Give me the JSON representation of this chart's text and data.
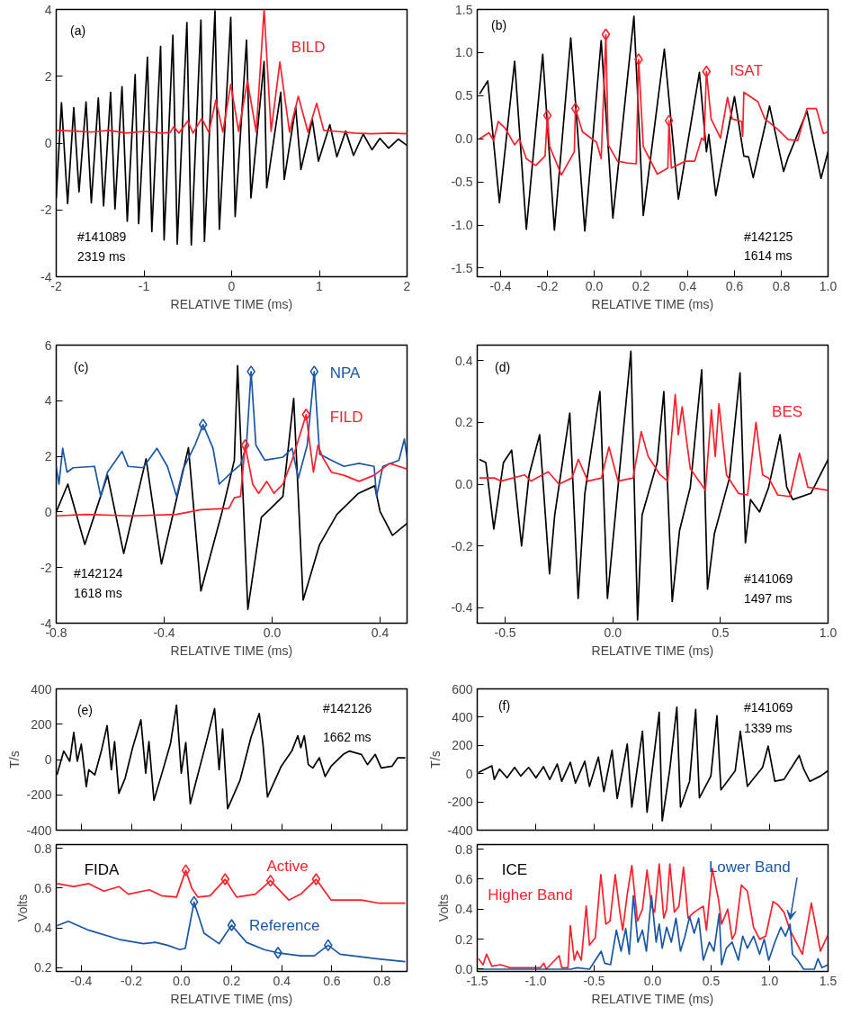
{
  "chart_data": [
    {
      "type": "line",
      "xlabel": "RELATIVE TIME (ms)",
      "xlim": [
        -2,
        2
      ],
      "ylim": [
        -4,
        4
      ],
      "xticks": [
        -2,
        -1,
        0,
        1,
        2
      ],
      "yticks": [
        -4,
        -2,
        0,
        2,
        4
      ],
      "annotations": [
        "(a)",
        "#141089",
        "2319 ms"
      ],
      "series": [
        {
          "color": "#000000",
          "x": [
            -2,
            -1.94,
            -1.87,
            -1.8,
            -1.74,
            -1.66,
            -1.6,
            -1.52,
            -1.46,
            -1.38,
            -1.33,
            -1.25,
            -1.19,
            -1.1,
            -1.06,
            -0.96,
            -0.91,
            -0.81,
            -0.77,
            -0.67,
            -0.62,
            -0.51,
            -0.46,
            -0.35,
            -0.31,
            -0.19,
            -0.14,
            -0.01,
            0.04,
            0.17,
            0.22,
            0.37,
            0.4,
            0.56,
            0.6,
            0.73,
            0.79,
            0.92,
            0.99,
            1.12,
            1.2,
            1.3,
            1.39,
            1.5,
            1.6,
            1.69,
            1.79,
            1.9,
            2.0
          ],
          "values": [
            -1.64,
            1.21,
            -1.81,
            1.06,
            -1.46,
            1.23,
            -1.79,
            1.35,
            -1.88,
            1.52,
            -1.97,
            1.69,
            -2.34,
            2.05,
            -2.41,
            2.57,
            -2.65,
            2.89,
            -2.9,
            3.23,
            -3.02,
            3.61,
            -3.05,
            3.68,
            -2.94,
            3.96,
            -2.58,
            3.76,
            -2.2,
            3.08,
            -1.64,
            2.44,
            -1.34,
            1.52,
            -1.09,
            1.08,
            -0.79,
            0.7,
            -0.54,
            0.55,
            -0.41,
            0.36,
            -0.37,
            0.27,
            -0.2,
            0.14,
            -0.15,
            0.12,
            -0.07
          ]
        },
        {
          "name": "BILD",
          "color": "#ff1f2a",
          "x": [
            -2,
            -1.8,
            -1.6,
            -1.4,
            -1.2,
            -1.0,
            -0.8,
            -0.7,
            -0.66,
            -0.6,
            -0.5,
            -0.44,
            -0.34,
            -0.26,
            -0.18,
            -0.1,
            -0.01,
            0.08,
            0.18,
            0.28,
            0.37,
            0.45,
            0.55,
            0.66,
            0.76,
            0.87,
            0.97,
            1.05,
            1.2,
            1.4,
            1.6,
            1.8,
            2.0
          ],
          "values": [
            0.38,
            0.36,
            0.33,
            0.38,
            0.3,
            0.35,
            0.3,
            0.32,
            0.49,
            0.3,
            0.66,
            0.3,
            0.74,
            0.32,
            1.29,
            0.33,
            1.76,
            0.35,
            1.86,
            0.33,
            4.0,
            0.35,
            2.43,
            0.33,
            1.4,
            0.33,
            1.19,
            0.38,
            0.35,
            0.3,
            0.28,
            0.3,
            0.28
          ]
        }
      ]
    },
    {
      "type": "line",
      "xlabel": "RELATIVE TIME (ms)",
      "xlim": [
        -0.5,
        1.0
      ],
      "ylim": [
        -1.6,
        1.5
      ],
      "xticks": [
        -0.4,
        -0.2,
        {
          "value": 0,
          "label": "0.0"
        },
        0.2,
        0.4,
        0.6,
        0.8,
        {
          "value": 1,
          "label": "1.0"
        }
      ],
      "yticks": [
        -1.5,
        {
          "value": -1,
          "label": "-1.0"
        },
        -0.5,
        {
          "value": 0,
          "label": "0.0"
        },
        0.5,
        {
          "value": 1,
          "label": "1.0"
        },
        1.5
      ],
      "annotations": [
        "(b)",
        "#142125",
        "1614 ms"
      ],
      "series": [
        {
          "color": "#000000",
          "x": [
            -0.49,
            -0.455,
            -0.405,
            -0.34,
            -0.29,
            -0.22,
            -0.17,
            -0.1,
            -0.04,
            0.03,
            0.08,
            0.17,
            0.21,
            0.3,
            0.36,
            0.45,
            0.48,
            0.49,
            0.52,
            0.6,
            0.64,
            0.66,
            0.68,
            0.75,
            0.81,
            0.83,
            0.91,
            0.97,
            1.0
          ],
          "values": [
            0.52,
            0.67,
            -0.74,
            0.9,
            -1.05,
            0.98,
            -1.06,
            1.17,
            -1.07,
            1.14,
            -0.92,
            1.42,
            -0.89,
            1.04,
            -0.7,
            0.77,
            -0.15,
            0.05,
            -0.66,
            0.49,
            -0.2,
            -0.21,
            -0.45,
            0.38,
            -0.38,
            -0.21,
            0.32,
            -0.46,
            -0.15
          ]
        },
        {
          "name": "ISAT",
          "color": "#ff1f2a",
          "x": [
            -0.49,
            -0.45,
            -0.43,
            -0.41,
            -0.38,
            -0.34,
            -0.32,
            -0.29,
            -0.25,
            -0.21,
            -0.2,
            -0.19,
            -0.14,
            -0.085,
            -0.08,
            -0.05,
            0.01,
            0.03,
            0.05,
            0.06,
            0.1,
            0.14,
            0.18,
            0.19,
            0.21,
            0.27,
            0.315,
            0.32,
            0.33,
            0.39,
            0.43,
            0.46,
            0.47,
            0.48,
            0.5,
            0.54,
            0.57,
            0.59,
            0.63,
            0.635,
            0.64,
            0.7,
            0.73,
            0.78,
            0.83,
            0.87,
            0.91,
            0.95,
            0.98,
            1.0
          ],
          "values": [
            0.0,
            0.07,
            -0.02,
            0.2,
            0.12,
            -0.07,
            0.0,
            -0.23,
            -0.31,
            -0.2,
            0.27,
            -0.09,
            -0.42,
            -0.15,
            0.35,
            0.08,
            -0.04,
            -0.23,
            1.21,
            -0.07,
            -0.26,
            -0.28,
            -0.29,
            0.92,
            -0.09,
            -0.41,
            -0.34,
            0.21,
            -0.34,
            -0.26,
            -0.26,
            0.01,
            -0.02,
            0.78,
            0.23,
            0.01,
            0.48,
            0.23,
            0.2,
            0.03,
            0.54,
            0.43,
            0.23,
            0.12,
            -0.01,
            -0.02,
            0.35,
            0.35,
            0.06,
            0.08
          ]
        },
        {
          "type": "scatter",
          "marker": "diamond",
          "color": "#ff1f2a",
          "x": [
            -0.2,
            -0.08,
            0.05,
            0.19,
            0.32,
            0.48
          ],
          "values": [
            0.27,
            0.35,
            1.21,
            0.92,
            0.21,
            0.78
          ]
        }
      ]
    },
    {
      "type": "line",
      "xlabel": "RELATIVE TIME (ms)",
      "xlim": [
        -0.8,
        0.5
      ],
      "ylim": [
        -4,
        6
      ],
      "xticks": [
        -0.8,
        -0.4,
        {
          "value": 0,
          "label": "0.0"
        },
        0.4
      ],
      "yticks": [
        -4,
        -2,
        0,
        2,
        4,
        6
      ],
      "annotations": [
        "(c)",
        "#142124",
        "1618 ms"
      ],
      "series": [
        {
          "color": "#000000",
          "x": [
            -0.8,
            -0.757,
            -0.694,
            -0.61,
            -0.55,
            -0.467,
            -0.41,
            -0.31,
            -0.264,
            -0.185,
            -0.14,
            -0.128,
            -0.09,
            -0.04,
            -0.005,
            0.04,
            0.08,
            0.115,
            0.176,
            0.24,
            0.32,
            0.38,
            0.4,
            0.446,
            0.5
          ],
          "values": [
            0.0,
            1.0,
            -1.17,
            1.32,
            -1.49,
            1.91,
            -1.87,
            2.31,
            -2.84,
            0.02,
            1.86,
            5.26,
            -3.5,
            -0.19,
            0.13,
            0.56,
            4.08,
            -3.17,
            -1.17,
            -0.09,
            0.67,
            0.94,
            0.02,
            -0.84,
            -0.41
          ]
        },
        {
          "name": "NPA",
          "color": "#1a56a8",
          "x": [
            -0.8,
            -0.79,
            -0.776,
            -0.76,
            -0.737,
            -0.658,
            -0.635,
            -0.61,
            -0.556,
            -0.534,
            -0.478,
            -0.427,
            -0.388,
            -0.354,
            -0.33,
            -0.286,
            -0.256,
            -0.219,
            -0.196,
            -0.15,
            -0.117,
            -0.095,
            -0.078,
            -0.06,
            -0.027,
            0.04,
            0.074,
            0.097,
            0.13,
            0.156,
            0.176,
            0.22,
            0.266,
            0.322,
            0.378,
            0.387,
            0.41,
            0.47,
            0.49,
            0.5
          ],
          "values": [
            1.64,
            1.0,
            2.29,
            1.43,
            1.59,
            1.64,
            0.56,
            1.43,
            2.18,
            1.64,
            1.59,
            2.29,
            1.64,
            0.56,
            1.54,
            2.4,
            3.14,
            2.29,
            1.0,
            1.43,
            1.7,
            2.4,
            5.05,
            2.4,
            1.86,
            1.97,
            2.29,
            1.21,
            2.4,
            5.05,
            2.08,
            1.86,
            1.64,
            1.75,
            1.64,
            0.56,
            1.64,
            1.86,
            2.62,
            1.97
          ]
        },
        {
          "type": "scatter",
          "marker": "diamond",
          "color": "#1a56a8",
          "x": [
            -0.256,
            -0.078,
            0.156
          ],
          "values": [
            3.14,
            5.05,
            5.05
          ]
        },
        {
          "name": "FILD",
          "color": "#ff1f2a",
          "x": [
            -0.8,
            -0.69,
            -0.52,
            -0.354,
            -0.264,
            -0.16,
            -0.14,
            -0.117,
            -0.1,
            -0.072,
            -0.05,
            -0.02,
            0.007,
            0.04,
            0.074,
            0.126,
            0.153,
            0.17,
            0.187,
            0.22,
            0.266,
            0.322,
            0.378,
            0.435,
            0.5
          ],
          "values": [
            -0.14,
            -0.09,
            -0.14,
            -0.09,
            0.08,
            0.13,
            0.51,
            0.56,
            2.4,
            1.0,
            0.67,
            1.1,
            0.67,
            1.0,
            1.86,
            3.5,
            1.43,
            2.4,
            1.97,
            1.43,
            1.32,
            1.1,
            1.32,
            1.75,
            1.54
          ]
        },
        {
          "type": "scatter",
          "marker": "diamond",
          "color": "#ff1f2a",
          "x": [
            -0.1,
            0.126
          ],
          "values": [
            2.4,
            3.5
          ]
        }
      ]
    },
    {
      "type": "line",
      "xlabel": "RELATIVE TIME (ms)",
      "xlim": [
        -0.63,
        1.0
      ],
      "ylim": [
        -0.45,
        0.45
      ],
      "xticks": [
        -0.5,
        {
          "value": 0,
          "label": "0.0"
        },
        0.5,
        {
          "value": 1,
          "label": "1.0"
        }
      ],
      "yticks": [
        -0.4,
        -0.2,
        {
          "value": 0,
          "label": "0.0"
        },
        0.2,
        0.4
      ],
      "annotations": [
        "(d)",
        "#141069",
        "1497 ms"
      ],
      "series": [
        {
          "color": "#000000",
          "x": [
            -0.62,
            -0.59,
            -0.553,
            -0.508,
            -0.47,
            -0.424,
            -0.389,
            -0.34,
            -0.294,
            -0.27,
            -0.2,
            -0.161,
            -0.13,
            -0.06,
            -0.025,
            0.024,
            0.084,
            0.115,
            0.136,
            0.206,
            0.237,
            0.276,
            0.31,
            0.36,
            0.413,
            0.44,
            0.472,
            0.542,
            0.591,
            0.616,
            0.64,
            0.682,
            0.724,
            0.777,
            0.808,
            0.836,
            0.92,
            1.0
          ],
          "values": [
            0.08,
            0.07,
            -0.145,
            0.07,
            0.11,
            -0.2,
            0.03,
            0.16,
            -0.29,
            -0.1,
            0.23,
            -0.37,
            -0.03,
            0.3,
            -0.37,
            -0.01,
            0.43,
            -0.44,
            -0.1,
            0.07,
            0.3,
            -0.38,
            -0.15,
            -0.01,
            0.37,
            -0.34,
            -0.16,
            0.02,
            0.36,
            -0.19,
            -0.05,
            -0.09,
            -0.01,
            0.16,
            -0.01,
            -0.05,
            -0.03,
            0.08
          ]
        },
        {
          "name": "BES",
          "color": "#ff1f2a",
          "x": [
            -0.62,
            -0.55,
            -0.52,
            -0.41,
            -0.38,
            -0.3,
            -0.25,
            -0.19,
            -0.16,
            -0.116,
            -0.053,
            -0.018,
            0.024,
            0.094,
            0.132,
            0.164,
            0.22,
            0.255,
            0.29,
            0.304,
            0.322,
            0.36,
            0.43,
            0.458,
            0.476,
            0.493,
            0.528,
            0.584,
            0.626,
            0.665,
            0.696,
            0.724,
            0.766,
            0.822,
            0.867,
            0.906,
            1.0
          ],
          "values": [
            0.02,
            0.02,
            0.01,
            0.03,
            0.01,
            0.04,
            0.0,
            0.02,
            0.08,
            0.01,
            0.02,
            0.12,
            0.01,
            0.02,
            0.17,
            0.09,
            0.03,
            0.01,
            0.29,
            0.16,
            0.25,
            0.05,
            -0.02,
            0.24,
            0.09,
            0.26,
            0.03,
            -0.03,
            -0.035,
            0.2,
            0.03,
            0.02,
            -0.035,
            -0.04,
            0.1,
            -0.01,
            -0.02
          ]
        }
      ]
    },
    {
      "type": "line",
      "tick_labels": "y",
      "ylabel": "T/s",
      "xlim": [
        -0.5,
        0.9
      ],
      "ylim": [
        -400,
        400
      ],
      "xticks": [
        -0.4,
        -0.2,
        0,
        0.2,
        0.4,
        0.6,
        0.8
      ],
      "yticks": [
        -400,
        -200,
        0,
        200,
        400
      ],
      "annotations": [
        "(e)",
        "#142126",
        "1662 ms"
      ],
      "series": [
        {
          "color": "#000000",
          "x": [
            -0.497,
            -0.47,
            -0.446,
            -0.43,
            -0.416,
            -0.4,
            -0.38,
            -0.37,
            -0.346,
            -0.32,
            -0.297,
            -0.28,
            -0.267,
            -0.25,
            -0.225,
            -0.195,
            -0.162,
            -0.143,
            -0.13,
            -0.11,
            -0.074,
            -0.044,
            -0.02,
            -0.001,
            0.017,
            0.035,
            0.095,
            0.132,
            0.15,
            0.164,
            0.184,
            0.234,
            0.277,
            0.31,
            0.325,
            0.343,
            0.398,
            0.44,
            0.464,
            0.476,
            0.49,
            0.506,
            0.524,
            0.55,
            0.573,
            0.597,
            0.645,
            0.67,
            0.718,
            0.742,
            0.773,
            0.797,
            0.84,
            0.863,
            0.893
          ],
          "values": [
            -87,
            48,
            -10,
            154,
            -10,
            87,
            -154,
            -58,
            -87,
            48,
            192,
            -58,
            102,
            -192,
            -106,
            67,
            225,
            -77,
            102,
            -231,
            -58,
            90,
            308,
            -77,
            96,
            -250,
            77,
            288,
            -58,
            173,
            -279,
            -115,
            125,
            260,
            87,
            -212,
            -38,
            48,
            135,
            67,
            135,
            -29,
            -48,
            10,
            -96,
            -38,
            29,
            48,
            29,
            -29,
            29,
            -48,
            -38,
            10,
            10
          ]
        }
      ]
    },
    {
      "type": "line",
      "ylabel": "Volts",
      "xlabel": "RELATIVE TIME (ms)",
      "xlim": [
        -0.5,
        0.9
      ],
      "ylim": [
        0.18,
        0.82
      ],
      "xticks": [
        -0.4,
        -0.2,
        {
          "value": 0,
          "label": "0.0"
        },
        0.2,
        0.4,
        0.6,
        0.8
      ],
      "yticks": [
        0.2,
        0.4,
        0.6,
        0.8
      ],
      "annotations": [
        "FIDA"
      ],
      "series": [
        {
          "name": "Active",
          "color": "#ff1f2a",
          "x": [
            -0.497,
            -0.43,
            -0.37,
            -0.31,
            -0.25,
            -0.212,
            -0.128,
            -0.08,
            -0.02,
            0.017,
            0.041,
            0.065,
            0.114,
            0.174,
            0.22,
            0.295,
            0.355,
            0.428,
            0.476,
            0.537,
            0.597,
            0.718,
            0.79,
            0.893
          ],
          "values": [
            0.623,
            0.608,
            0.623,
            0.585,
            0.608,
            0.57,
            0.592,
            0.562,
            0.555,
            0.69,
            0.6,
            0.555,
            0.562,
            0.645,
            0.555,
            0.57,
            0.638,
            0.54,
            0.57,
            0.645,
            0.54,
            0.54,
            0.524,
            0.524
          ]
        },
        {
          "type": "scatter",
          "marker": "diamond",
          "color": "#ff1f2a",
          "x": [
            0.017,
            0.174,
            0.355,
            0.537
          ],
          "values": [
            0.69,
            0.645,
            0.638,
            0.645
          ]
        },
        {
          "name": "Reference",
          "color": "#1a56a8",
          "x": [
            -0.497,
            -0.452,
            -0.37,
            -0.25,
            -0.152,
            -0.104,
            -0.056,
            -0.007,
            0.015,
            0.05,
            0.09,
            0.15,
            0.2,
            0.259,
            0.33,
            0.385,
            0.476,
            0.53,
            0.585,
            0.633,
            0.778,
            0.893
          ],
          "values": [
            0.41,
            0.433,
            0.388,
            0.342,
            0.32,
            0.327,
            0.312,
            0.29,
            0.297,
            0.53,
            0.373,
            0.32,
            0.414,
            0.327,
            0.29,
            0.274,
            0.259,
            0.259,
            0.312,
            0.267,
            0.244,
            0.229
          ]
        },
        {
          "type": "scatter",
          "marker": "diamond",
          "color": "#1a56a8",
          "x": [
            0.05,
            0.2,
            0.385,
            0.585
          ],
          "values": [
            0.53,
            0.414,
            0.274,
            0.312
          ]
        }
      ]
    },
    {
      "type": "line",
      "tick_labels": "y",
      "ylabel": "T/s",
      "xlim": [
        -1.5,
        1.5
      ],
      "ylim": [
        -400,
        600
      ],
      "xticks": [
        -1.5,
        -1,
        -0.5,
        0,
        0.5,
        1,
        1.5
      ],
      "yticks": [
        -400,
        -200,
        0,
        200,
        400,
        600
      ],
      "annotations": [
        "(f)",
        "#141069",
        "1339 ms"
      ],
      "series": [
        {
          "color": "#000000",
          "x": [
            -1.49,
            -1.375,
            -1.354,
            -1.31,
            -1.245,
            -1.18,
            -1.128,
            -1.06,
            -0.998,
            -0.933,
            -0.88,
            -0.816,
            -0.777,
            -0.704,
            -0.66,
            -0.58,
            -0.54,
            -0.464,
            -0.417,
            -0.347,
            -0.303,
            -0.217,
            -0.178,
            -0.087,
            -0.048,
            0.056,
            0.082,
            0.147,
            0.207,
            0.238,
            0.316,
            0.368,
            0.4,
            0.498,
            0.55,
            0.584,
            0.706,
            0.75,
            0.81,
            0.94,
            0.988,
            1.045,
            1.123,
            1.253,
            1.292,
            1.344,
            1.435,
            1.5
          ],
          "values": [
            7,
            56,
            -41,
            32,
            -29,
            44,
            -17,
            44,
            -29,
            49,
            -41,
            68,
            -54,
            80,
            -66,
            88,
            -90,
            117,
            -127,
            166,
            -176,
            210,
            -237,
            300,
            -273,
            434,
            -334,
            32,
            471,
            -237,
            -54,
            454,
            -171,
            -17,
            410,
            -115,
            20,
            300,
            -90,
            44,
            195,
            -54,
            -41,
            129,
            32,
            -54,
            -17,
            20
          ]
        }
      ]
    },
    {
      "type": "line",
      "ylabel": "Volts",
      "xlabel": "RELATIVE TIME (ms)",
      "xlim": [
        -1.5,
        1.5
      ],
      "ylim": [
        -0.015,
        0.83
      ],
      "xticks": [
        -1.5,
        {
          "value": -1,
          "label": "-1.0"
        },
        -0.5,
        {
          "value": 0,
          "label": "0.0"
        },
        0.5,
        {
          "value": 1,
          "label": "1.0"
        },
        1.5
      ],
      "yticks": [
        {
          "value": 0,
          "label": "0.0"
        },
        0.2,
        0.4,
        0.6,
        0.8
      ],
      "annotations": [
        "ICE",
        {
          "text": "Lower Band",
          "x": 1.175,
          "y": 0.33
        }
      ],
      "series": [
        {
          "name": "Higher Band",
          "color": "#ff1f2a",
          "x": [
            -1.49,
            -1.45,
            -1.42,
            -1.375,
            -1.3,
            -1.22,
            -0.96,
            -0.93,
            -0.91,
            -0.8,
            -0.777,
            -0.724,
            -0.704,
            -0.67,
            -0.646,
            -0.61,
            -0.568,
            -0.54,
            -0.49,
            -0.443,
            -0.4,
            -0.365,
            -0.32,
            -0.28,
            -0.256,
            -0.217,
            -0.178,
            -0.13,
            -0.087,
            -0.048,
            -0.01,
            0.017,
            0.056,
            0.095,
            0.12,
            0.147,
            0.186,
            0.225,
            0.264,
            0.303,
            0.355,
            0.433,
            0.46,
            0.51,
            0.564,
            0.59,
            0.642,
            0.68,
            0.707,
            0.759,
            0.81,
            0.863,
            0.915,
            0.967,
            1.03,
            1.07,
            1.123,
            1.175,
            1.227,
            1.28,
            1.357,
            1.435,
            1.5
          ],
          "values": [
            0.07,
            0.03,
            0.1,
            0.02,
            0.03,
            0.01,
            0.01,
            0.04,
            0.0,
            0.09,
            0.01,
            0.01,
            0.29,
            0.06,
            0.12,
            0.06,
            0.42,
            0.16,
            0.21,
            0.63,
            0.3,
            0.32,
            0.63,
            0.38,
            0.26,
            0.5,
            0.69,
            0.32,
            0.4,
            0.66,
            0.42,
            0.38,
            0.7,
            0.34,
            0.4,
            0.7,
            0.38,
            0.42,
            0.68,
            0.34,
            0.38,
            0.42,
            0.26,
            0.67,
            0.46,
            0.3,
            0.4,
            0.2,
            0.24,
            0.56,
            0.52,
            0.28,
            0.2,
            0.22,
            0.45,
            0.43,
            0.38,
            0.26,
            0.18,
            0.1,
            0.44,
            0.12,
            0.23
          ]
        },
        {
          "color": "#1a56a8",
          "x": [
            -1.49,
            -1.22,
            -0.96,
            -0.7,
            -0.646,
            -0.54,
            -0.44,
            -0.41,
            -0.36,
            -0.31,
            -0.27,
            -0.23,
            -0.2,
            -0.165,
            -0.126,
            -0.087,
            -0.053,
            -0.01,
            0.03,
            0.056,
            0.082,
            0.12,
            0.16,
            0.2,
            0.238,
            0.277,
            0.316,
            0.355,
            0.394,
            0.433,
            0.485,
            0.524,
            0.569,
            0.59,
            0.63,
            0.68,
            0.733,
            0.77,
            0.81,
            0.863,
            0.915,
            0.954,
            0.993,
            1.045,
            1.097,
            1.136,
            1.175,
            1.196,
            1.24,
            1.292,
            1.383,
            1.414,
            1.448,
            1.5
          ],
          "values": [
            0.0,
            0.0,
            0.0,
            0.0,
            0.01,
            0.0,
            0.12,
            0.04,
            0.03,
            0.26,
            0.12,
            0.27,
            0.1,
            0.49,
            0.18,
            0.26,
            0.12,
            0.49,
            0.18,
            0.3,
            0.14,
            0.28,
            0.18,
            0.34,
            0.12,
            0.22,
            0.35,
            0.24,
            0.34,
            0.06,
            0.18,
            0.12,
            0.37,
            0.03,
            0.14,
            0.18,
            0.06,
            0.22,
            0.14,
            0.22,
            0.1,
            0.2,
            0.06,
            0.18,
            0.28,
            0.22,
            0.3,
            0.1,
            0.06,
            0.0,
            0.0,
            0.07,
            0.01,
            0.03
          ]
        }
      ]
    }
  ]
}
